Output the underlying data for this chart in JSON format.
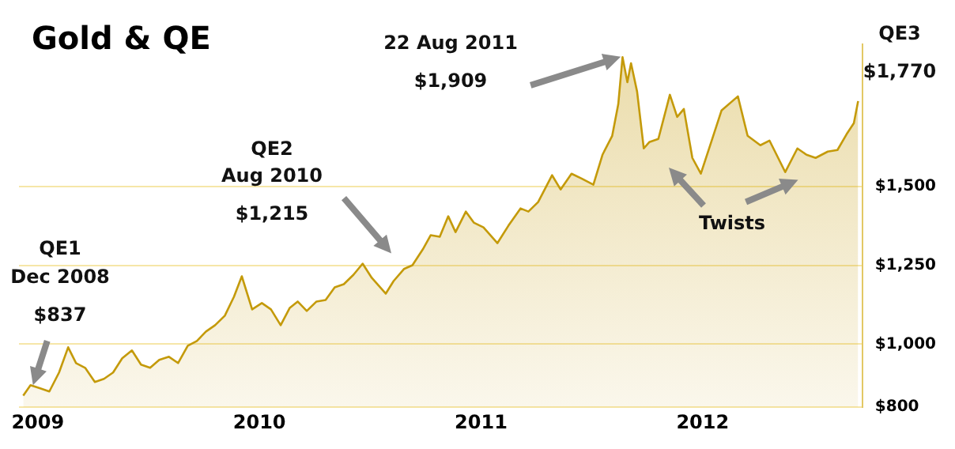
{
  "chart_data": {
    "type": "area",
    "title": "Gold & QE",
    "x": [
      "2008-12-08",
      "2008-12-20",
      "2009-01-05",
      "2009-01-20",
      "2009-02-05",
      "2009-02-20",
      "2009-03-05",
      "2009-03-20",
      "2009-04-05",
      "2009-04-20",
      "2009-05-05",
      "2009-05-20",
      "2009-06-05",
      "2009-06-20",
      "2009-07-05",
      "2009-07-20",
      "2009-08-05",
      "2009-08-20",
      "2009-09-05",
      "2009-09-20",
      "2009-10-05",
      "2009-10-20",
      "2009-11-05",
      "2009-11-20",
      "2009-12-03",
      "2009-12-20",
      "2010-01-05",
      "2010-01-20",
      "2010-02-05",
      "2010-02-20",
      "2010-03-05",
      "2010-03-20",
      "2010-04-05",
      "2010-04-20",
      "2010-05-05",
      "2010-05-20",
      "2010-06-05",
      "2010-06-20",
      "2010-07-05",
      "2010-07-28",
      "2010-08-10",
      "2010-08-27",
      "2010-09-10",
      "2010-09-27",
      "2010-10-10",
      "2010-10-25",
      "2010-11-08",
      "2010-11-20",
      "2010-12-07",
      "2010-12-20",
      "2011-01-05",
      "2011-01-28",
      "2011-02-15",
      "2011-03-07",
      "2011-03-20",
      "2011-04-05",
      "2011-04-28",
      "2011-05-12",
      "2011-05-30",
      "2011-06-15",
      "2011-07-05",
      "2011-07-20",
      "2011-08-05",
      "2011-08-15",
      "2011-08-22",
      "2011-08-30",
      "2011-09-05",
      "2011-09-15",
      "2011-09-26",
      "2011-10-05",
      "2011-10-20",
      "2011-11-08",
      "2011-11-20",
      "2011-12-01",
      "2011-12-15",
      "2011-12-29",
      "2012-01-15",
      "2012-02-01",
      "2012-02-28",
      "2012-03-15",
      "2012-04-05",
      "2012-04-20",
      "2012-05-16",
      "2012-06-05",
      "2012-06-20",
      "2012-07-05",
      "2012-07-25",
      "2012-08-10",
      "2012-08-25",
      "2012-09-06",
      "2012-09-13"
    ],
    "series": [
      {
        "color": "#c49a0a",
        "values": [
          837,
          870,
          860,
          850,
          910,
          990,
          940,
          925,
          880,
          890,
          910,
          955,
          980,
          935,
          925,
          950,
          960,
          940,
          995,
          1010,
          1040,
          1060,
          1090,
          1150,
          1215,
          1110,
          1130,
          1110,
          1060,
          1115,
          1135,
          1105,
          1135,
          1140,
          1180,
          1190,
          1220,
          1255,
          1210,
          1160,
          1200,
          1238,
          1250,
          1300,
          1345,
          1340,
          1405,
          1355,
          1420,
          1385,
          1370,
          1320,
          1375,
          1430,
          1420,
          1450,
          1535,
          1490,
          1540,
          1525,
          1505,
          1600,
          1660,
          1760,
          1909,
          1830,
          1890,
          1800,
          1620,
          1640,
          1650,
          1790,
          1720,
          1745,
          1590,
          1540,
          1640,
          1740,
          1785,
          1660,
          1630,
          1645,
          1545,
          1620,
          1600,
          1590,
          1610,
          1615,
          1665,
          1700,
          1770
        ]
      }
    ],
    "xlim": [
      "2008-12-01",
      "2012-09-20"
    ],
    "xticks": [
      "2009",
      "2010",
      "2011",
      "2012"
    ],
    "ylim": [
      800,
      1950
    ],
    "yticks": [
      {
        "value": 800,
        "label": "$800"
      },
      {
        "value": 1000,
        "label": "$1,000"
      },
      {
        "value": 1250,
        "label": "$1,250"
      },
      {
        "value": 1500,
        "label": "$1,500"
      }
    ],
    "grid": "y",
    "annotations": [
      "QE1\nDec 2008\n$837",
      "QE2\nAug 2010\n$1,215",
      "22 Aug 2011\n$1,909",
      "QE3\n$1,770",
      "Twists"
    ]
  }
}
